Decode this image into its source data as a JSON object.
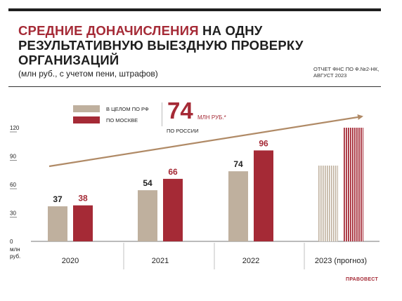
{
  "header": {
    "title_line1_accent": "СРЕДНИЕ ДОНАЧИСЛЕНИЯ",
    "title_line1_rest": " НА ОДНУ",
    "title_line2": "РЕЗУЛЬТАТИВНУЮ ВЫЕЗДНУЮ ПРОВЕРКУ",
    "title_line3": "ОРГАНИЗАЦИЙ",
    "subtitle": "(млн руб., с учетом пени, штрафов)",
    "source_line1": "ОТЧЕТ ФНС ПО Ф.№2-НК,",
    "source_line2": "АВГУСТ 2023"
  },
  "highlight": {
    "value": "74",
    "unit": "МЛН РУБ.*",
    "label": "ПО РОССИИ"
  },
  "brand": {
    "logo_text": "ПРАВОВЕСТ"
  },
  "colors": {
    "rf": "#bfb09e",
    "moscow": "#a52a36",
    "trend": "#b08a66",
    "text": "#222222"
  },
  "chart_data": {
    "type": "bar",
    "categories": [
      "2020",
      "2021",
      "2022",
      "2023 (прогноз)"
    ],
    "series": [
      {
        "name": "В ЦЕЛОМ ПО РФ",
        "values": [
          37,
          54,
          74,
          80
        ],
        "labels": [
          "37",
          "54",
          "74",
          ""
        ],
        "color": "#bfb09e",
        "forecast_last": true
      },
      {
        "name": "ПО МОСКВЕ",
        "values": [
          38,
          66,
          96,
          120
        ],
        "labels": [
          "38",
          "66",
          "96",
          ""
        ],
        "color": "#a52a36",
        "forecast_last": true
      }
    ],
    "yticks": [
      "0",
      "30",
      "60",
      "90",
      "120"
    ],
    "ytick_values": [
      0,
      30,
      60,
      90,
      120
    ],
    "yunit_line1": "млн",
    "yunit_line2": "руб.",
    "ylim": [
      0,
      120
    ],
    "trend_arrow": true
  }
}
